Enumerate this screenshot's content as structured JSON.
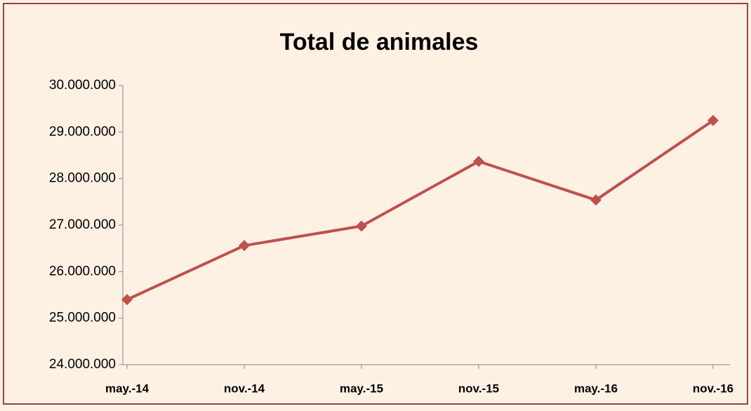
{
  "chart_data": {
    "type": "line",
    "title": "Total de animales",
    "categories": [
      "may.-14",
      "nov.-14",
      "may.-15",
      "nov.-15",
      "may.-16",
      "nov.-16"
    ],
    "series": [
      {
        "name": "Total de animales",
        "color": "#c0504d",
        "values": [
          25400000,
          26560000,
          26980000,
          28370000,
          27540000,
          29250000
        ]
      }
    ],
    "ylim": [
      24000000,
      30000000
    ],
    "yticks": [
      {
        "value": 24000000,
        "label": "24.000.000"
      },
      {
        "value": 25000000,
        "label": "25.000.000"
      },
      {
        "value": 26000000,
        "label": "26.000.000"
      },
      {
        "value": 27000000,
        "label": "27.000.000"
      },
      {
        "value": 28000000,
        "label": "28.000.000"
      },
      {
        "value": 29000000,
        "label": "29.000.000"
      },
      {
        "value": 30000000,
        "label": "30.000.000"
      }
    ]
  }
}
